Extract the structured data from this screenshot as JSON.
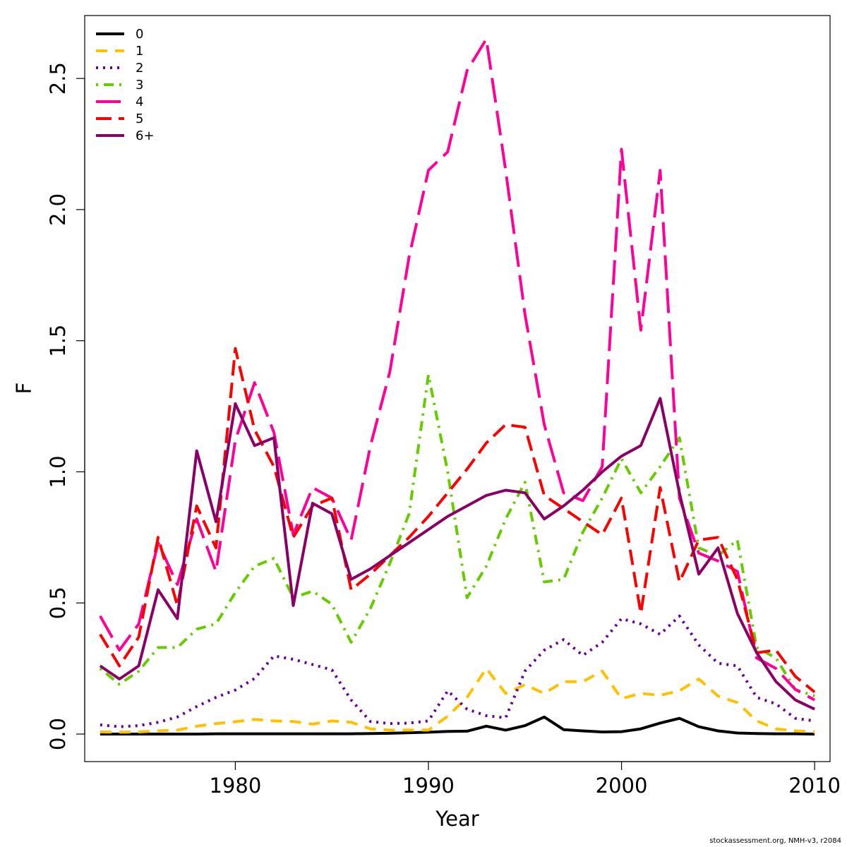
{
  "chart_data": {
    "type": "line",
    "xlabel": "Year",
    "ylabel": "F",
    "xlim": [
      1972.2,
      2010.8
    ],
    "ylim": [
      -0.105,
      2.74
    ],
    "xticks": [
      1980,
      1990,
      2000,
      2010
    ],
    "xtick_labels": [
      "1980",
      "1990",
      "2000",
      "2010"
    ],
    "yticks": [
      0.0,
      0.5,
      1.0,
      1.5,
      2.0,
      2.5
    ],
    "ytick_labels": [
      "0.0",
      "0.5",
      "1.0",
      "1.5",
      "2.0",
      "2.5"
    ],
    "legend_position": "top-left",
    "grid": false,
    "x": [
      1973,
      1974,
      1975,
      1976,
      1977,
      1978,
      1979,
      1980,
      1981,
      1982,
      1983,
      1984,
      1985,
      1986,
      1987,
      1988,
      1989,
      1990,
      1991,
      1992,
      1993,
      1994,
      1995,
      1996,
      1997,
      1998,
      1999,
      2000,
      2001,
      2002,
      2003,
      2004,
      2005,
      2006,
      2007,
      2008,
      2009,
      2010
    ],
    "series": [
      {
        "name": "0",
        "color": "#000000",
        "dash": "",
        "values": [
          0.0,
          0.0,
          0.0,
          0.0,
          0.0,
          0.0,
          0.001,
          0.001,
          0.001,
          0.001,
          0.001,
          0.001,
          0.001,
          0.001,
          0.002,
          0.003,
          0.005,
          0.007,
          0.01,
          0.011,
          0.03,
          0.015,
          0.032,
          0.065,
          0.017,
          0.012,
          0.008,
          0.009,
          0.02,
          0.042,
          0.06,
          0.028,
          0.012,
          0.004,
          0.002,
          0.001,
          0.001,
          0.0
        ]
      },
      {
        "name": "1",
        "color": "#FFC000",
        "dash": "16,11",
        "values": [
          0.008,
          0.007,
          0.008,
          0.012,
          0.015,
          0.03,
          0.04,
          0.047,
          0.056,
          0.05,
          0.048,
          0.038,
          0.05,
          0.045,
          0.02,
          0.015,
          0.015,
          0.015,
          0.068,
          0.14,
          0.25,
          0.155,
          0.188,
          0.155,
          0.2,
          0.2,
          0.24,
          0.135,
          0.155,
          0.148,
          0.165,
          0.21,
          0.145,
          0.12,
          0.05,
          0.02,
          0.012,
          0.008
        ]
      },
      {
        "name": "2",
        "color": "#660099",
        "dash": "3,7",
        "values": [
          0.035,
          0.028,
          0.032,
          0.045,
          0.065,
          0.105,
          0.14,
          0.168,
          0.212,
          0.298,
          0.285,
          0.265,
          0.245,
          0.13,
          0.048,
          0.04,
          0.042,
          0.05,
          0.165,
          0.095,
          0.07,
          0.062,
          0.24,
          0.32,
          0.36,
          0.3,
          0.35,
          0.44,
          0.42,
          0.38,
          0.45,
          0.34,
          0.27,
          0.26,
          0.14,
          0.115,
          0.06,
          0.05
        ]
      },
      {
        "name": "3",
        "color": "#66CC00",
        "dash": "3,8,14,8",
        "values": [
          0.25,
          0.19,
          0.24,
          0.33,
          0.33,
          0.4,
          0.42,
          0.54,
          0.64,
          0.67,
          0.52,
          0.545,
          0.495,
          0.35,
          0.48,
          0.65,
          0.84,
          1.37,
          1.0,
          0.52,
          0.64,
          0.82,
          0.96,
          0.58,
          0.59,
          0.77,
          0.9,
          1.05,
          0.92,
          1.02,
          1.13,
          0.71,
          0.68,
          0.74,
          0.33,
          0.29,
          0.17,
          0.145
        ]
      },
      {
        "name": "4",
        "color": "#FF0099",
        "dash": "35,12",
        "values": [
          0.45,
          0.32,
          0.42,
          0.73,
          0.57,
          0.82,
          0.62,
          1.12,
          1.34,
          1.15,
          0.76,
          0.94,
          0.9,
          0.74,
          1.1,
          1.38,
          1.82,
          2.15,
          2.22,
          2.53,
          2.65,
          2.15,
          1.6,
          1.18,
          0.92,
          0.89,
          1.02,
          2.23,
          1.54,
          2.15,
          0.9,
          0.69,
          0.66,
          0.62,
          0.29,
          0.25,
          0.17,
          0.13
        ]
      },
      {
        "name": "5",
        "color": "#FF0000",
        "dash": "22,10",
        "values": [
          0.38,
          0.26,
          0.37,
          0.75,
          0.49,
          0.87,
          0.71,
          1.47,
          1.16,
          1.02,
          0.75,
          0.87,
          0.9,
          0.55,
          0.61,
          0.68,
          0.75,
          0.83,
          0.92,
          1.01,
          1.11,
          1.18,
          1.17,
          0.91,
          0.86,
          0.81,
          0.76,
          0.9,
          0.46,
          0.94,
          0.58,
          0.74,
          0.75,
          0.59,
          0.31,
          0.32,
          0.22,
          0.16
        ]
      },
      {
        "name": "6+",
        "color": "#8B0066",
        "dash": "",
        "values": [
          0.26,
          0.21,
          0.26,
          0.55,
          0.44,
          1.08,
          0.81,
          1.26,
          1.1,
          1.13,
          0.49,
          0.88,
          0.84,
          0.59,
          0.63,
          0.68,
          0.73,
          0.78,
          0.83,
          0.87,
          0.91,
          0.93,
          0.92,
          0.82,
          0.87,
          0.93,
          1.0,
          1.06,
          1.1,
          1.28,
          0.92,
          0.61,
          0.71,
          0.46,
          0.31,
          0.2,
          0.13,
          0.095
        ]
      }
    ]
  },
  "footer": "stockassessment.org, NMH-v3, r2084"
}
